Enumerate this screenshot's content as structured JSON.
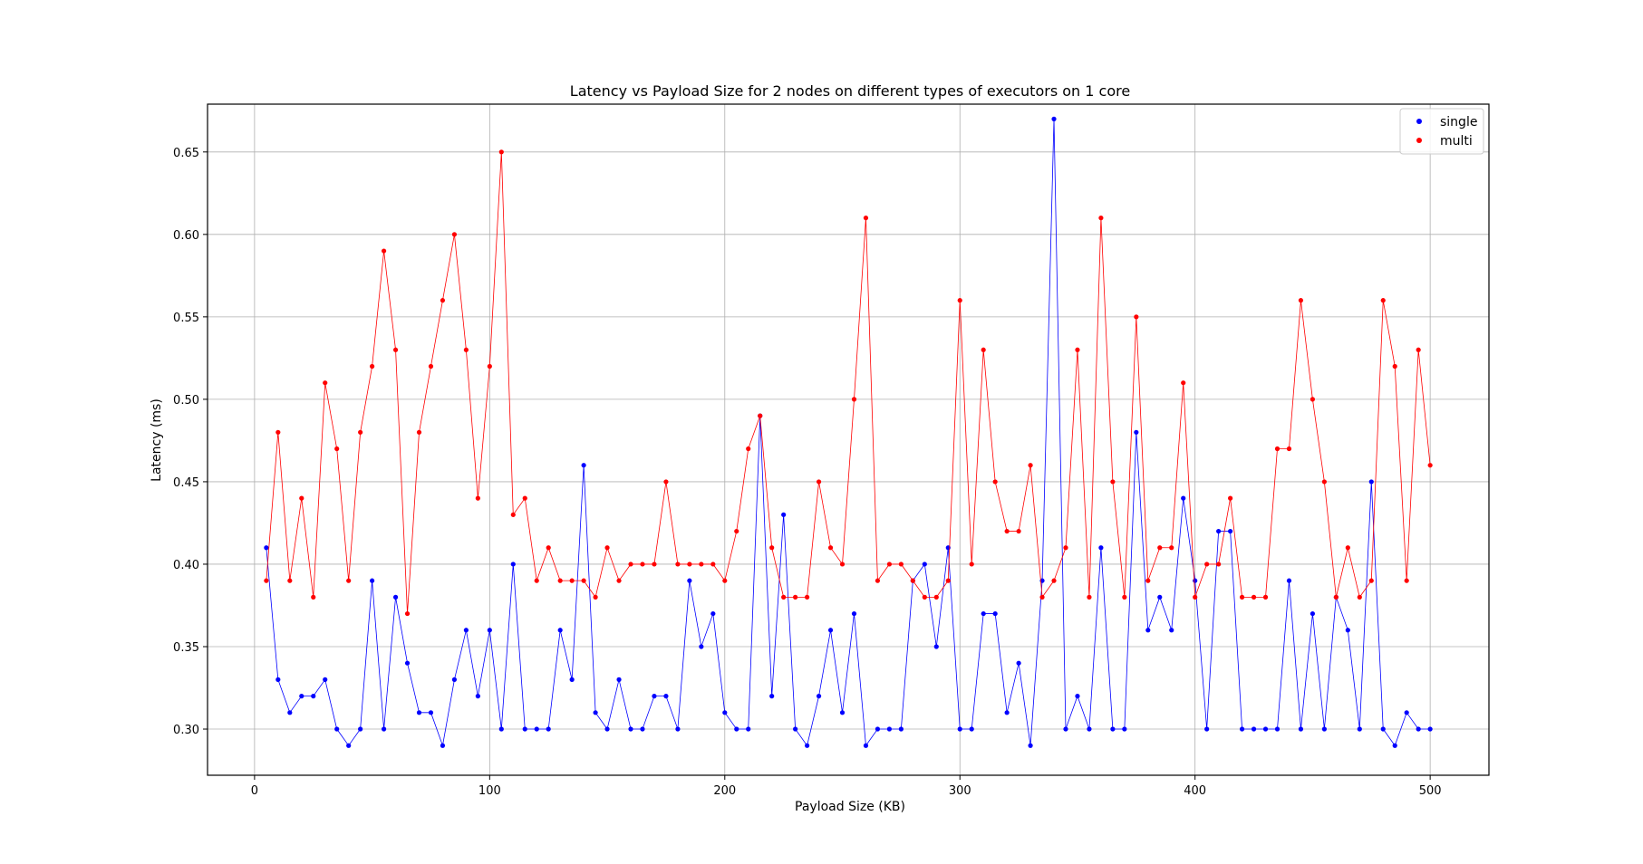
{
  "chart_data": {
    "type": "line",
    "title": "Latency vs Payload Size for 2 nodes on different types of executors on 1 core",
    "xlabel": "Payload Size (KB)",
    "ylabel": "Latency (ms)",
    "xlim": [
      -20,
      525
    ],
    "ylim": [
      0.272,
      0.679
    ],
    "xticks": [
      0,
      100,
      200,
      300,
      400,
      500
    ],
    "yticks": [
      0.3,
      0.35,
      0.4,
      0.45,
      0.5,
      0.55,
      0.6,
      0.65
    ],
    "ytick_labels": [
      "0.30",
      "0.35",
      "0.40",
      "0.45",
      "0.50",
      "0.55",
      "0.60",
      "0.65"
    ],
    "grid": true,
    "legend_position": "top-right",
    "x": [
      5,
      10,
      15,
      20,
      25,
      30,
      35,
      40,
      45,
      50,
      55,
      60,
      65,
      70,
      75,
      80,
      85,
      90,
      95,
      100,
      105,
      110,
      115,
      120,
      125,
      130,
      135,
      140,
      145,
      150,
      155,
      160,
      165,
      170,
      175,
      180,
      185,
      190,
      195,
      200,
      205,
      210,
      215,
      220,
      225,
      230,
      235,
      240,
      245,
      250,
      255,
      260,
      265,
      270,
      275,
      280,
      285,
      290,
      295,
      300,
      305,
      310,
      315,
      320,
      325,
      330,
      335,
      340,
      345,
      350,
      355,
      360,
      365,
      370,
      375,
      380,
      385,
      390,
      395,
      400,
      405,
      410,
      415,
      420,
      425,
      430,
      435,
      440,
      445,
      450,
      455,
      460,
      465,
      470,
      475,
      480,
      485,
      490,
      495,
      500
    ],
    "series": [
      {
        "name": "single",
        "color": "#0000ff",
        "values": [
          0.41,
          0.33,
          0.31,
          0.32,
          0.32,
          0.33,
          0.3,
          0.29,
          0.3,
          0.39,
          0.3,
          0.38,
          0.34,
          0.31,
          0.31,
          0.29,
          0.33,
          0.36,
          0.32,
          0.36,
          0.3,
          0.4,
          0.3,
          0.3,
          0.3,
          0.36,
          0.33,
          0.46,
          0.31,
          0.3,
          0.33,
          0.3,
          0.3,
          0.32,
          0.32,
          0.3,
          0.39,
          0.35,
          0.37,
          0.31,
          0.3,
          0.3,
          0.49,
          0.32,
          0.43,
          0.3,
          0.29,
          0.32,
          0.36,
          0.31,
          0.37,
          0.29,
          0.3,
          0.3,
          0.3,
          0.39,
          0.4,
          0.35,
          0.41,
          0.3,
          0.3,
          0.37,
          0.37,
          0.31,
          0.34,
          0.29,
          0.39,
          0.67,
          0.3,
          0.32,
          0.3,
          0.41,
          0.3,
          0.3,
          0.48,
          0.36,
          0.38,
          0.36,
          0.44,
          0.39,
          0.3,
          0.42,
          0.42,
          0.3,
          0.3,
          0.3,
          0.3,
          0.39,
          0.3,
          0.37,
          0.3,
          0.38,
          0.36,
          0.3,
          0.45,
          0.3,
          0.29,
          0.31,
          0.3,
          0.3
        ]
      },
      {
        "name": "multi",
        "color": "#ff0000",
        "values": [
          0.39,
          0.48,
          0.39,
          0.44,
          0.38,
          0.51,
          0.47,
          0.39,
          0.48,
          0.52,
          0.59,
          0.53,
          0.37,
          0.48,
          0.52,
          0.56,
          0.6,
          0.53,
          0.44,
          0.52,
          0.65,
          0.43,
          0.44,
          0.39,
          0.41,
          0.39,
          0.39,
          0.39,
          0.38,
          0.41,
          0.39,
          0.4,
          0.4,
          0.4,
          0.45,
          0.4,
          0.4,
          0.4,
          0.4,
          0.39,
          0.42,
          0.47,
          0.49,
          0.41,
          0.38,
          0.38,
          0.38,
          0.45,
          0.41,
          0.4,
          0.5,
          0.61,
          0.39,
          0.4,
          0.4,
          0.39,
          0.38,
          0.38,
          0.39,
          0.56,
          0.4,
          0.53,
          0.45,
          0.42,
          0.42,
          0.46,
          0.38,
          0.39,
          0.41,
          0.53,
          0.38,
          0.61,
          0.45,
          0.38,
          0.55,
          0.39,
          0.41,
          0.41,
          0.51,
          0.38,
          0.4,
          0.4,
          0.44,
          0.38,
          0.38,
          0.38,
          0.47,
          0.47,
          0.56,
          0.5,
          0.45,
          0.38,
          0.41,
          0.38,
          0.39,
          0.56,
          0.52,
          0.39,
          0.53,
          0.46
        ]
      }
    ]
  }
}
